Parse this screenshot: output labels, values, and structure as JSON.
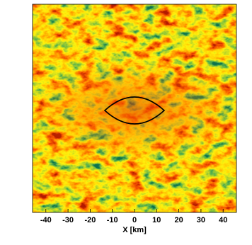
{
  "chart_data": {
    "type": "heatmap",
    "xlabel": "X [km]",
    "xlim": [
      -46,
      46
    ],
    "xticks": [
      -40,
      -30,
      -20,
      -10,
      0,
      10,
      20,
      30,
      40
    ]
  }
}
